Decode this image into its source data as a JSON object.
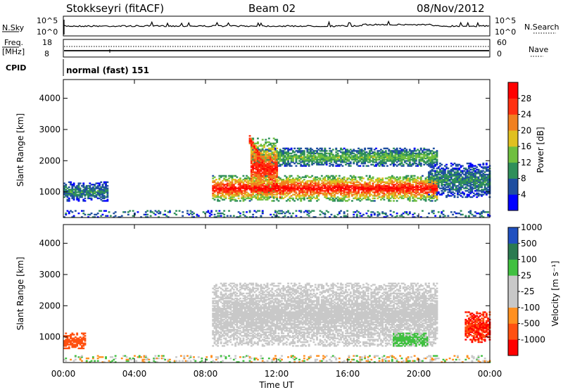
{
  "header": {
    "station": "Stokkseyri (fitACF)",
    "beam": "Beam 02",
    "date": "08/Nov/2012"
  },
  "panels": {
    "nsky": {
      "left_label": "N.Sky",
      "right_label": "N.Search",
      "left_ticks": [
        "10^5",
        "10^0"
      ],
      "right_ticks": [
        "10^5",
        "10^0"
      ]
    },
    "freq": {
      "left_label_line1": "Freq.",
      "left_label_line2": "[MHz]",
      "right_label": "Nave",
      "left_ticks": [
        "18",
        "8"
      ],
      "right_ticks": [
        "60",
        "0"
      ]
    },
    "cpid": {
      "label": "CPID",
      "text": "normal (fast) 151"
    }
  },
  "colors": {
    "power_scale": [
      "#0000ff",
      "#1f4ea0",
      "#2f8f5a",
      "#6fbf3f",
      "#e0c020",
      "#f08020",
      "#ff3010",
      "#ff0000"
    ],
    "velocity_scale": [
      "#ff0000",
      "#ff5010",
      "#ff9020",
      "#c8c8c8",
      "#c8c8c8",
      "#40c040",
      "#2a7a50",
      "#2050c0"
    ],
    "ground_scatter": "#c8c8c8"
  },
  "chart_data": [
    {
      "type": "heatmap",
      "name": "power",
      "ylabel": "Slant Range [km]",
      "xlabel": "",
      "ylim": [
        180,
        4600
      ],
      "y_ticks": [
        "1000",
        "2000",
        "3000",
        "4000"
      ],
      "colorbar_label": "Power [dB]",
      "colorbar_ticks": [
        "4",
        "8",
        "12",
        "16",
        "20",
        "24",
        "28"
      ],
      "colorbar_range": [
        0,
        32
      ],
      "features": [
        {
          "desc": "main echo band",
          "t_start": 8.3,
          "t_end": 21.0,
          "range_km": [
            700,
            1500
          ],
          "peak_db": 30
        },
        {
          "desc": "upper band",
          "t_start": 10.5,
          "t_end": 21.0,
          "range_km": [
            1800,
            2400
          ],
          "peak_db": 14
        },
        {
          "desc": "diagonal streak",
          "t_start": 10.5,
          "t_end": 12.0,
          "range_km": [
            800,
            2700
          ],
          "peak_db": 28
        },
        {
          "desc": "early night echoes",
          "t_start": 0,
          "t_end": 2.5,
          "range_km": [
            700,
            1300
          ],
          "peak_db": 10
        },
        {
          "desc": "evening echoes",
          "t_start": 20.5,
          "t_end": 24,
          "range_km": [
            800,
            1900
          ],
          "peak_db": 10
        }
      ]
    },
    {
      "type": "heatmap",
      "name": "velocity",
      "ylabel": "Slant Range [km]",
      "xlabel": "Time UT",
      "ylim": [
        180,
        4600
      ],
      "y_ticks": [
        "1000",
        "2000",
        "3000",
        "4000"
      ],
      "x_ticks": [
        "00:00",
        "04:00",
        "08:00",
        "12:00",
        "16:00",
        "20:00",
        "00:00"
      ],
      "xlim_hours": [
        0,
        24
      ],
      "colorbar_label": "Velocity [m s⁻¹]",
      "colorbar_ticks": [
        "-1000",
        "-500",
        "-100",
        "-25",
        "25",
        "100",
        "500",
        "1000"
      ],
      "features": [
        {
          "desc": "ground scatter (grey)",
          "t_start": 8.3,
          "t_end": 21.0,
          "range_km": [
            700,
            2700
          ],
          "velocity": 0
        },
        {
          "desc": "receding flow",
          "t_start": 0,
          "t_end": 1.2,
          "range_km": [
            600,
            1100
          ],
          "velocity": -500
        },
        {
          "desc": "evening approaching flow",
          "t_start": 18.5,
          "t_end": 20.5,
          "range_km": [
            700,
            1100
          ],
          "velocity": 150
        },
        {
          "desc": "late receding flow",
          "t_start": 22.5,
          "t_end": 24,
          "range_km": [
            800,
            1800
          ],
          "velocity": -700
        }
      ]
    }
  ]
}
